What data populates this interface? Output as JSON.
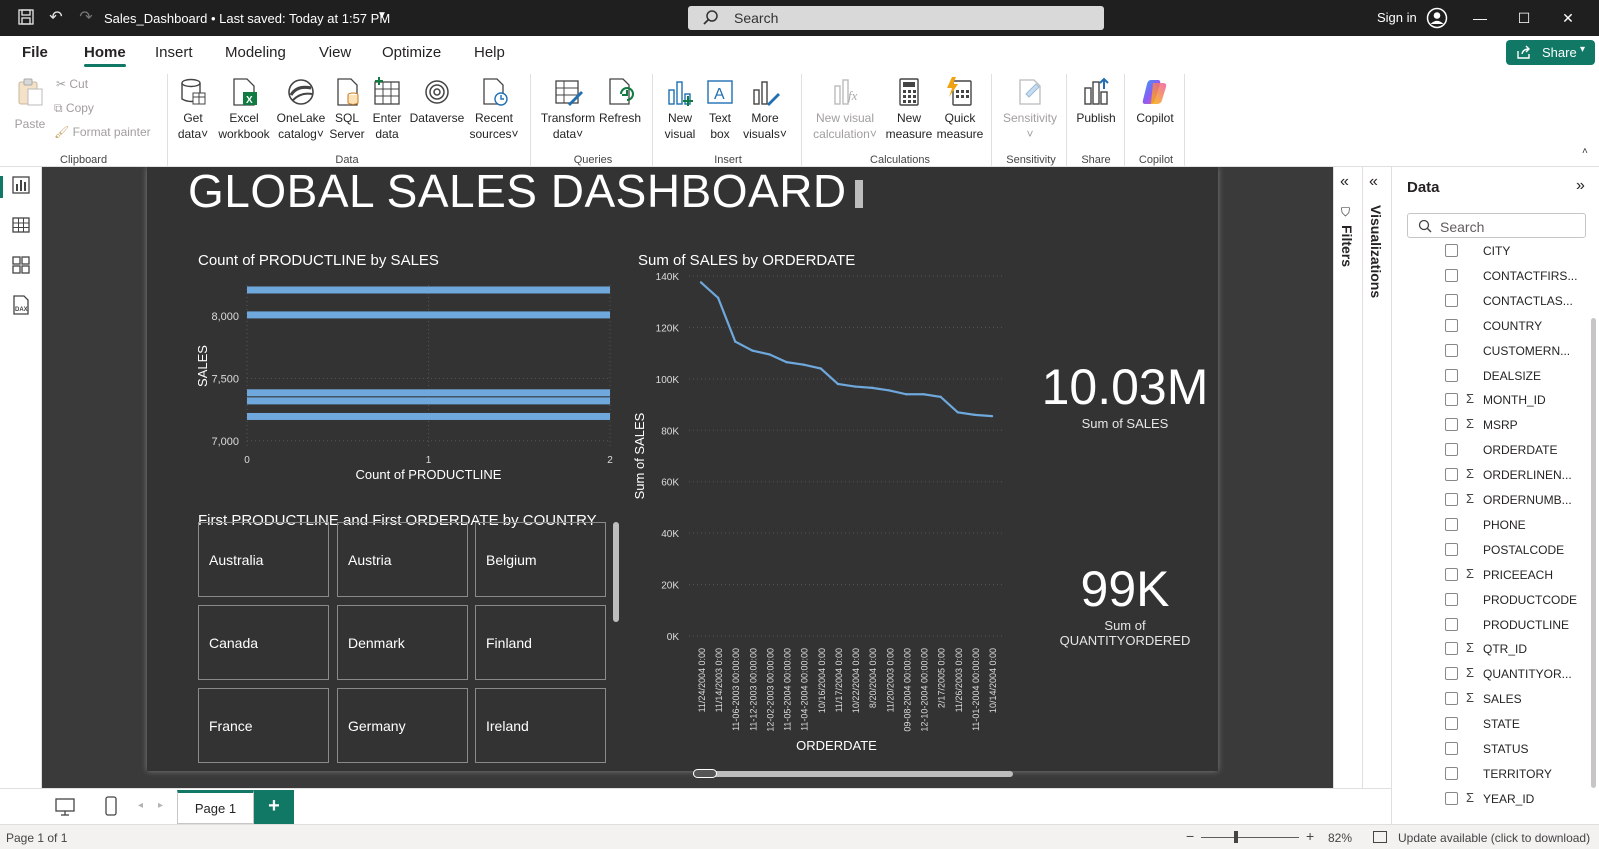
{
  "titlebar": {
    "doc_title": "Sales_Dashboard • Last saved: Today at 1:57 PM",
    "search_label": "Search",
    "sign_in": "Sign in"
  },
  "menu": {
    "tabs": [
      "File",
      "Home",
      "Insert",
      "Modeling",
      "View",
      "Optimize",
      "Help"
    ],
    "active": "Home",
    "share_label": "Share"
  },
  "ribbon": {
    "clipboard": {
      "paste": "Paste",
      "cut": "Cut",
      "copy": "Copy",
      "format_painter": "Format painter",
      "group": "Clipboard"
    },
    "data": {
      "get_data": [
        "Get",
        "data"
      ],
      "excel": [
        "Excel",
        "workbook"
      ],
      "onelake": [
        "OneLake",
        "catalog"
      ],
      "sql": [
        "SQL",
        "Server"
      ],
      "enter": [
        "Enter",
        "data"
      ],
      "dataverse": "Dataverse",
      "recent": [
        "Recent",
        "sources"
      ],
      "group": "Data"
    },
    "queries": {
      "transform": [
        "Transform",
        "data"
      ],
      "refresh": "Refresh",
      "group": "Queries"
    },
    "insert": {
      "new_visual": [
        "New",
        "visual"
      ],
      "text_box": [
        "Text",
        "box"
      ],
      "more_visuals": [
        "More",
        "visuals"
      ],
      "group": "Insert"
    },
    "calculations": {
      "new_visual_calc": [
        "New visual",
        "calculation"
      ],
      "new_measure": [
        "New",
        "measure"
      ],
      "quick_measure": [
        "Quick",
        "measure"
      ],
      "group": "Calculations"
    },
    "sensitivity": {
      "label": "Sensitivity",
      "group": "Sensitivity"
    },
    "share": {
      "publish": "Publish",
      "group": "Share"
    },
    "copilot": {
      "label": "Copilot",
      "group": "Copilot"
    }
  },
  "report": {
    "title": "GLOBAL SALES DASHBOARD",
    "bar_visual": {
      "title": "Count of PRODUCTLINE by SALES"
    },
    "line_visual": {
      "title": "Sum of SALES by ORDERDATE"
    },
    "card_sales": {
      "value": "10.03M",
      "label": "Sum of SALES"
    },
    "card_qty": {
      "value": "99K",
      "label_line1": "Sum of",
      "label_line2": "QUANTITYORDERED"
    },
    "country_visual": {
      "title": "First PRODUCTLINE and First ORDERDATE by COUNTRY",
      "countries": [
        "Australia",
        "Austria",
        "Belgium",
        "Canada",
        "Denmark",
        "Finland",
        "France",
        "Germany",
        "Ireland"
      ]
    }
  },
  "chart_data": [
    {
      "type": "bar",
      "orientation": "horizontal",
      "title": "Count of PRODUCTLINE by SALES",
      "xlabel": "Count of PRODUCTLINE",
      "ylabel": "SALES",
      "xlim": [
        0,
        2
      ],
      "ylim": [
        6950,
        8250
      ],
      "x_ticks": [
        "0",
        "1",
        "2"
      ],
      "y_ticks": [
        "7,000",
        "7,500",
        "8,000"
      ],
      "bars": [
        {
          "sales": 8210,
          "count": 2
        },
        {
          "sales": 8010,
          "count": 2
        },
        {
          "sales": 7385,
          "count": 2
        },
        {
          "sales": 7320,
          "count": 2
        },
        {
          "sales": 7195,
          "count": 2
        }
      ],
      "bar_color": "#6fa8dc",
      "grid": true
    },
    {
      "type": "line",
      "title": "Sum of SALES by ORDERDATE",
      "xlabel": "ORDERDATE",
      "ylabel": "Sum of SALES",
      "ylim": [
        0,
        140000
      ],
      "y_ticks": [
        "0K",
        "20K",
        "40K",
        "60K",
        "80K",
        "100K",
        "120K",
        "140K"
      ],
      "x": [
        "11/24/2004 0:00",
        "11/14/2003 0:00",
        "11-06-2003 00:00:00",
        "11-12-2003 00:00:00",
        "12-02-2003 00:00:00",
        "11-05-2004 00:00:00",
        "11-04-2004 00:00:00",
        "10/16/2004 0:00",
        "11/17/2004 0:00",
        "10/22/2004 0:00",
        "8/20/2004 0:00",
        "11/20/2003 0:00",
        "09-08-2004 00:00:00",
        "12-10-2004 00:00:00",
        "2/17/2005 0:00",
        "11/26/2003 0:00",
        "11-01-2004 00:00:00",
        "10/14/2004 0:00"
      ],
      "values": [
        137500,
        131500,
        114500,
        111000,
        109500,
        106500,
        105500,
        104000,
        98000,
        97000,
        96500,
        95500,
        94000,
        94000,
        93000,
        87000,
        86000,
        85500
      ],
      "line_color": "#6fa8dc",
      "grid": true
    }
  ],
  "panes": {
    "filters_label": "Filters",
    "visualizations_label": "Visualizations",
    "data_title": "Data",
    "data_search_placeholder": "Search",
    "fields": [
      {
        "name": "CITY",
        "sigma": false
      },
      {
        "name": "CONTACTFIRS...",
        "sigma": false
      },
      {
        "name": "CONTACTLAS...",
        "sigma": false
      },
      {
        "name": "COUNTRY",
        "sigma": false
      },
      {
        "name": "CUSTOMERN...",
        "sigma": false
      },
      {
        "name": "DEALSIZE",
        "sigma": false
      },
      {
        "name": "MONTH_ID",
        "sigma": true
      },
      {
        "name": "MSRP",
        "sigma": true
      },
      {
        "name": "ORDERDATE",
        "sigma": false
      },
      {
        "name": "ORDERLINEN...",
        "sigma": true
      },
      {
        "name": "ORDERNUMB...",
        "sigma": true
      },
      {
        "name": "PHONE",
        "sigma": false
      },
      {
        "name": "POSTALCODE",
        "sigma": false
      },
      {
        "name": "PRICEEACH",
        "sigma": true
      },
      {
        "name": "PRODUCTCODE",
        "sigma": false
      },
      {
        "name": "PRODUCTLINE",
        "sigma": false
      },
      {
        "name": "QTR_ID",
        "sigma": true
      },
      {
        "name": "QUANTITYOR...",
        "sigma": true
      },
      {
        "name": "SALES",
        "sigma": true
      },
      {
        "name": "STATE",
        "sigma": false
      },
      {
        "name": "STATUS",
        "sigma": false
      },
      {
        "name": "TERRITORY",
        "sigma": false
      },
      {
        "name": "YEAR_ID",
        "sigma": true
      }
    ]
  },
  "pagebar": {
    "page_tab": "Page 1",
    "add_page": "+"
  },
  "status": {
    "page_info": "Page 1 of 1",
    "zoom": "82%",
    "zoom_fraction": 0.36,
    "update": "Update available (click to download)"
  },
  "colors": {
    "accent": "#117865",
    "canvas": "#333333",
    "series": "#6fa8dc"
  }
}
